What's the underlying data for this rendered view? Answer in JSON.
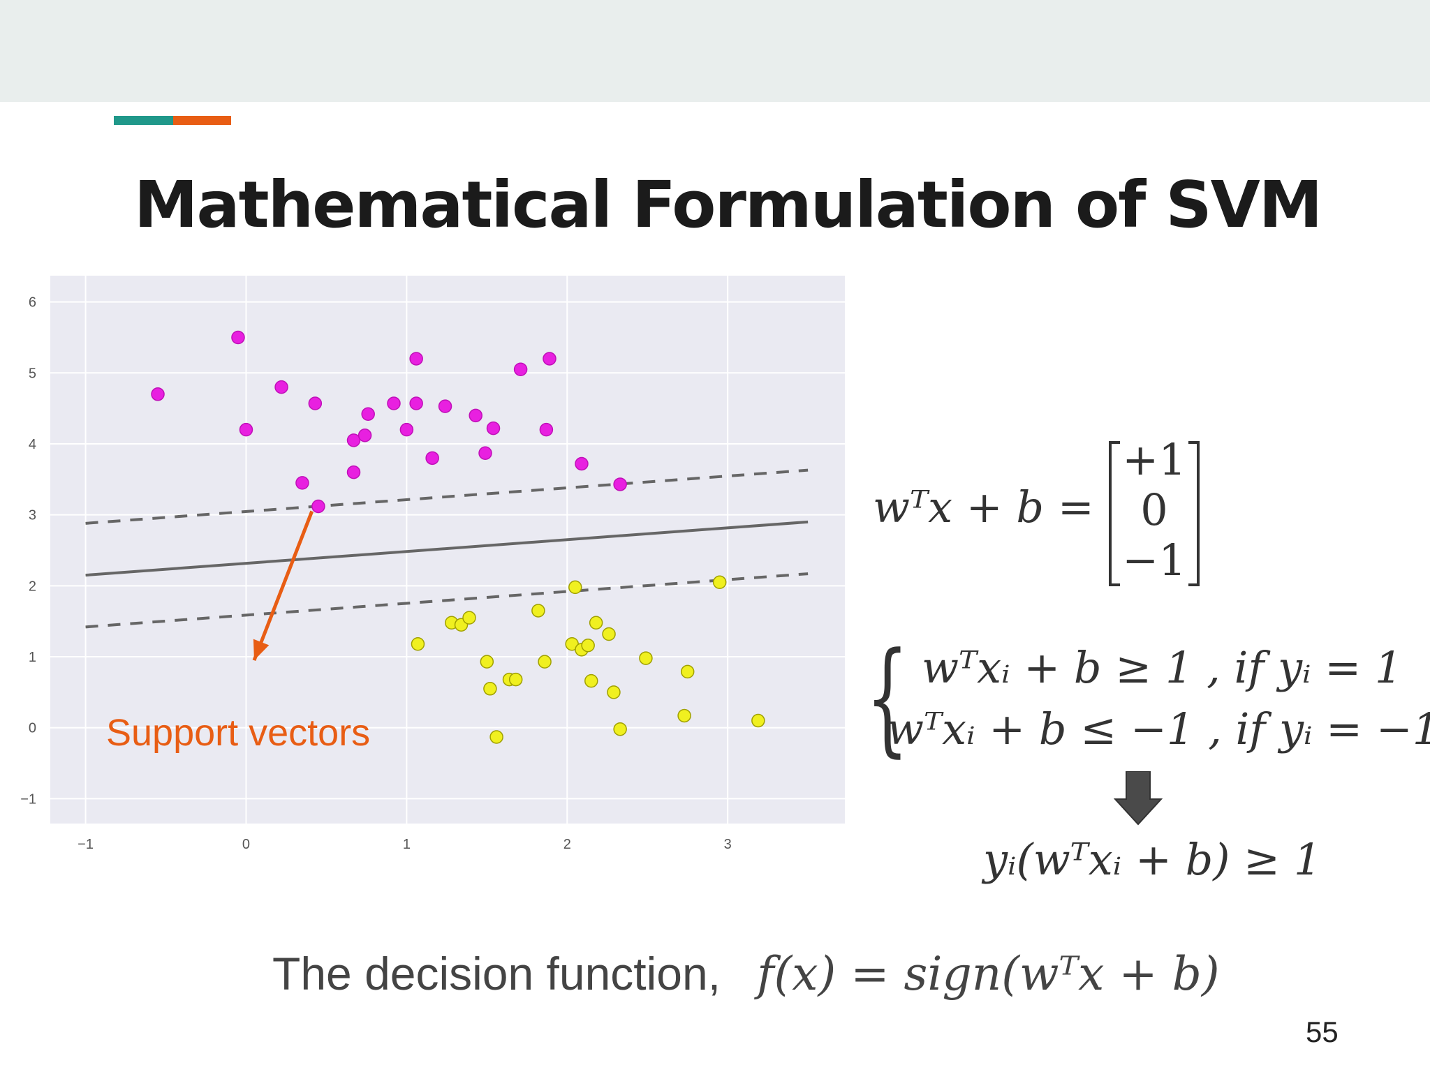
{
  "slide": {
    "title": "Mathematical Formulation of SVM",
    "page_number": "55",
    "colors": {
      "top_band": "#e9eeed",
      "accent_teal": "#20988a",
      "accent_orange": "#e85d14"
    }
  },
  "equations": {
    "eq1_lhs": "wᵀx + b =",
    "matrix": [
      "+1",
      "0",
      "−1"
    ],
    "cond1": "wᵀxᵢ + b ≥ 1 , if yᵢ = 1",
    "cond2": "wᵀxᵢ + b ≤ −1 , if yᵢ = −1",
    "combined": "yᵢ(wᵀxᵢ + b) ≥ 1",
    "decision_label": "The decision function,",
    "decision_formula": "f(x) = sign(wᵀx + b)"
  },
  "chart_data": {
    "type": "scatter",
    "title": "",
    "xlabel": "",
    "ylabel": "",
    "xlim": [
      -1.22,
      3.73
    ],
    "ylim": [
      -1.35,
      6.37
    ],
    "xticks": [
      -1,
      0,
      1,
      2,
      3
    ],
    "yticks": [
      -1,
      0,
      1,
      2,
      3,
      4,
      5,
      6
    ],
    "grid": true,
    "background": "#eaeaf2",
    "series": [
      {
        "color": "#e820e0",
        "points": [
          [
            -0.55,
            4.7
          ],
          [
            -0.05,
            5.5
          ],
          [
            0.0,
            4.2
          ],
          [
            0.22,
            4.8
          ],
          [
            0.35,
            3.45
          ],
          [
            0.43,
            4.57
          ],
          [
            0.45,
            3.12
          ],
          [
            0.67,
            3.6
          ],
          [
            0.67,
            4.05
          ],
          [
            0.74,
            4.12
          ],
          [
            0.76,
            4.42
          ],
          [
            0.92,
            4.57
          ],
          [
            1.0,
            4.2
          ],
          [
            1.06,
            4.57
          ],
          [
            1.06,
            5.2
          ],
          [
            1.16,
            3.8
          ],
          [
            1.24,
            4.53
          ],
          [
            1.43,
            4.4
          ],
          [
            1.49,
            3.87
          ],
          [
            1.54,
            4.22
          ],
          [
            1.71,
            5.05
          ],
          [
            1.87,
            4.2
          ],
          [
            1.89,
            5.2
          ],
          [
            2.09,
            3.72
          ],
          [
            2.33,
            3.43
          ]
        ]
      },
      {
        "color": "#f0f020",
        "points": [
          [
            1.07,
            1.18
          ],
          [
            1.28,
            1.48
          ],
          [
            1.34,
            1.45
          ],
          [
            1.39,
            1.55
          ],
          [
            1.5,
            0.93
          ],
          [
            1.52,
            0.55
          ],
          [
            1.56,
            -0.13
          ],
          [
            1.64,
            0.68
          ],
          [
            1.68,
            0.68
          ],
          [
            1.82,
            1.65
          ],
          [
            1.86,
            0.93
          ],
          [
            2.03,
            1.18
          ],
          [
            2.05,
            1.98
          ],
          [
            2.09,
            1.1
          ],
          [
            2.13,
            1.16
          ],
          [
            2.15,
            0.66
          ],
          [
            2.18,
            1.48
          ],
          [
            2.26,
            1.32
          ],
          [
            2.29,
            0.5
          ],
          [
            2.33,
            -0.02
          ],
          [
            2.49,
            0.98
          ],
          [
            2.73,
            0.17
          ],
          [
            2.75,
            0.79
          ],
          [
            2.95,
            2.05
          ],
          [
            3.19,
            0.1
          ]
        ]
      }
    ],
    "lines": [
      {
        "style": "solid",
        "from": [
          -1.0,
          2.15
        ],
        "to": [
          3.5,
          2.9
        ]
      },
      {
        "style": "dashed",
        "from": [
          -1.0,
          2.88
        ],
        "to": [
          3.5,
          3.63
        ]
      },
      {
        "style": "dashed",
        "from": [
          -1.0,
          1.42
        ],
        "to": [
          3.5,
          2.17
        ]
      }
    ],
    "annotations": [
      {
        "text": "Support vectors",
        "color": "#e85d14",
        "arrow_from": [
          0.41,
          3.05
        ],
        "arrow_to": [
          0.05,
          0.95
        ]
      }
    ]
  }
}
